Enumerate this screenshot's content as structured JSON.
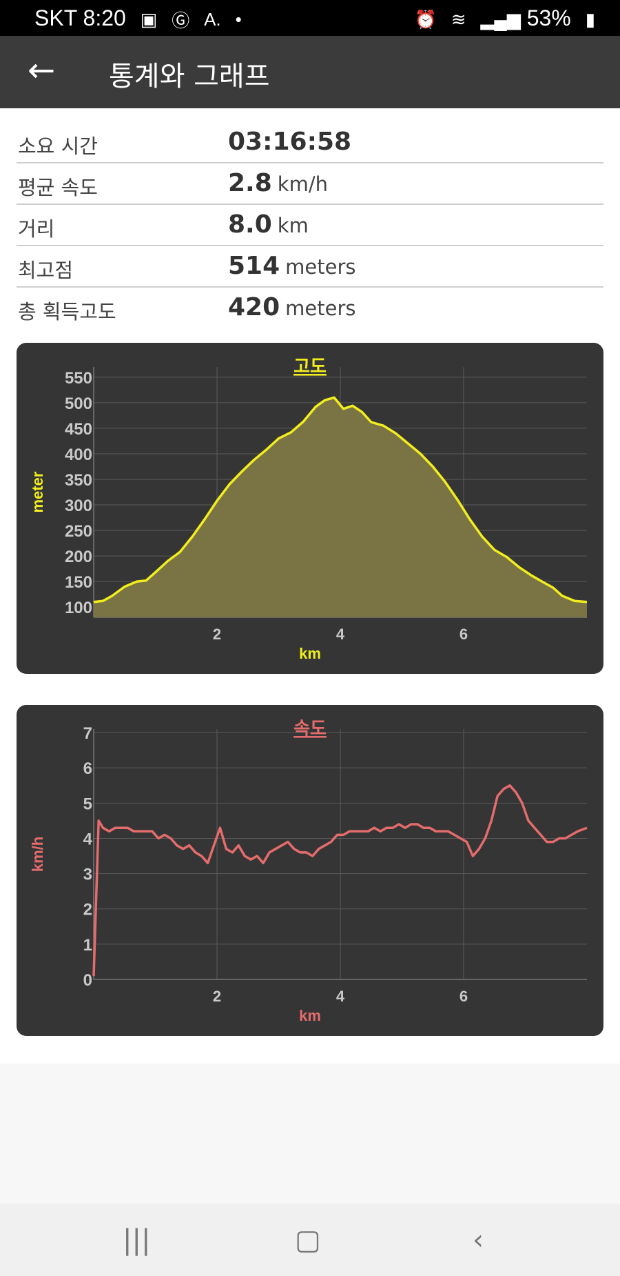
{
  "status": {
    "carrier": "SKT",
    "time": "8:20",
    "icons_left": [
      "gallery-icon",
      "g-icon",
      "a-icon",
      "dot"
    ],
    "battery": "53%"
  },
  "appbar": {
    "title": "통계와 그래프"
  },
  "stats": [
    {
      "label": "소요 시간",
      "value": "03:16:58",
      "unit": ""
    },
    {
      "label": "평균 속도",
      "value": "2.8",
      "unit": "km/h"
    },
    {
      "label": "거리",
      "value": "8.0",
      "unit": "km"
    },
    {
      "label": "최고점",
      "value": "514",
      "unit": "meters"
    },
    {
      "label": "총 획득고도",
      "value": "420",
      "unit": "meters"
    }
  ],
  "chart_data": [
    {
      "type": "area",
      "title": "고도",
      "xlabel": "km",
      "ylabel": "meter",
      "xlim": [
        0,
        8
      ],
      "ylim": [
        80,
        570
      ],
      "xticks": [
        2,
        4,
        6
      ],
      "yticks": [
        100,
        150,
        200,
        250,
        300,
        350,
        400,
        450,
        500,
        550
      ],
      "color": "#f2ee1e",
      "fill": "#7a7344",
      "x": [
        0,
        0.15,
        0.3,
        0.5,
        0.7,
        0.85,
        1.0,
        1.2,
        1.4,
        1.6,
        1.8,
        2.0,
        2.2,
        2.4,
        2.6,
        2.8,
        3.0,
        3.2,
        3.4,
        3.6,
        3.75,
        3.9,
        4.05,
        4.2,
        4.35,
        4.5,
        4.7,
        4.9,
        5.1,
        5.3,
        5.5,
        5.7,
        5.9,
        6.1,
        6.3,
        6.5,
        6.7,
        6.9,
        7.1,
        7.3,
        7.45,
        7.6,
        7.8,
        8.0
      ],
      "values": [
        110,
        112,
        122,
        140,
        150,
        152,
        168,
        190,
        208,
        238,
        272,
        308,
        340,
        365,
        388,
        408,
        430,
        442,
        463,
        492,
        505,
        510,
        488,
        494,
        482,
        462,
        455,
        440,
        420,
        400,
        375,
        345,
        310,
        272,
        238,
        212,
        198,
        178,
        162,
        148,
        138,
        122,
        112,
        110
      ]
    },
    {
      "type": "line",
      "title": "속도",
      "xlabel": "km",
      "ylabel": "km/h",
      "xlim": [
        0,
        8
      ],
      "ylim": [
        0,
        7.1
      ],
      "xticks": [
        2,
        4,
        6
      ],
      "yticks": [
        0,
        1,
        2,
        3,
        4,
        5,
        6,
        7
      ],
      "color": "#e56c6c",
      "x": [
        0,
        0.08,
        0.15,
        0.25,
        0.35,
        0.45,
        0.55,
        0.65,
        0.75,
        0.85,
        0.95,
        1.05,
        1.15,
        1.25,
        1.35,
        1.45,
        1.55,
        1.65,
        1.75,
        1.85,
        1.95,
        2.05,
        2.15,
        2.25,
        2.35,
        2.45,
        2.55,
        2.65,
        2.75,
        2.85,
        2.95,
        3.05,
        3.15,
        3.25,
        3.35,
        3.45,
        3.55,
        3.65,
        3.75,
        3.85,
        3.95,
        4.05,
        4.15,
        4.25,
        4.35,
        4.45,
        4.55,
        4.65,
        4.75,
        4.85,
        4.95,
        5.05,
        5.15,
        5.25,
        5.35,
        5.45,
        5.55,
        5.65,
        5.75,
        5.85,
        5.95,
        6.05,
        6.15,
        6.25,
        6.35,
        6.45,
        6.55,
        6.65,
        6.75,
        6.85,
        6.95,
        7.05,
        7.15,
        7.25,
        7.35,
        7.45,
        7.55,
        7.65,
        7.75,
        7.85,
        8.0
      ],
      "values": [
        0.1,
        4.5,
        4.3,
        4.2,
        4.3,
        4.3,
        4.3,
        4.2,
        4.2,
        4.2,
        4.2,
        4.0,
        4.1,
        4.0,
        3.8,
        3.7,
        3.8,
        3.6,
        3.5,
        3.3,
        3.8,
        4.3,
        3.7,
        3.6,
        3.8,
        3.5,
        3.4,
        3.5,
        3.3,
        3.6,
        3.7,
        3.8,
        3.9,
        3.7,
        3.6,
        3.6,
        3.5,
        3.7,
        3.8,
        3.9,
        4.1,
        4.1,
        4.2,
        4.2,
        4.2,
        4.2,
        4.3,
        4.2,
        4.3,
        4.3,
        4.4,
        4.3,
        4.4,
        4.4,
        4.3,
        4.3,
        4.2,
        4.2,
        4.2,
        4.1,
        4.0,
        3.9,
        3.5,
        3.7,
        4.0,
        4.5,
        5.2,
        5.4,
        5.5,
        5.3,
        5.0,
        4.5,
        4.3,
        4.1,
        3.9,
        3.9,
        4.0,
        4.0,
        4.1,
        4.2,
        4.3
      ]
    }
  ]
}
